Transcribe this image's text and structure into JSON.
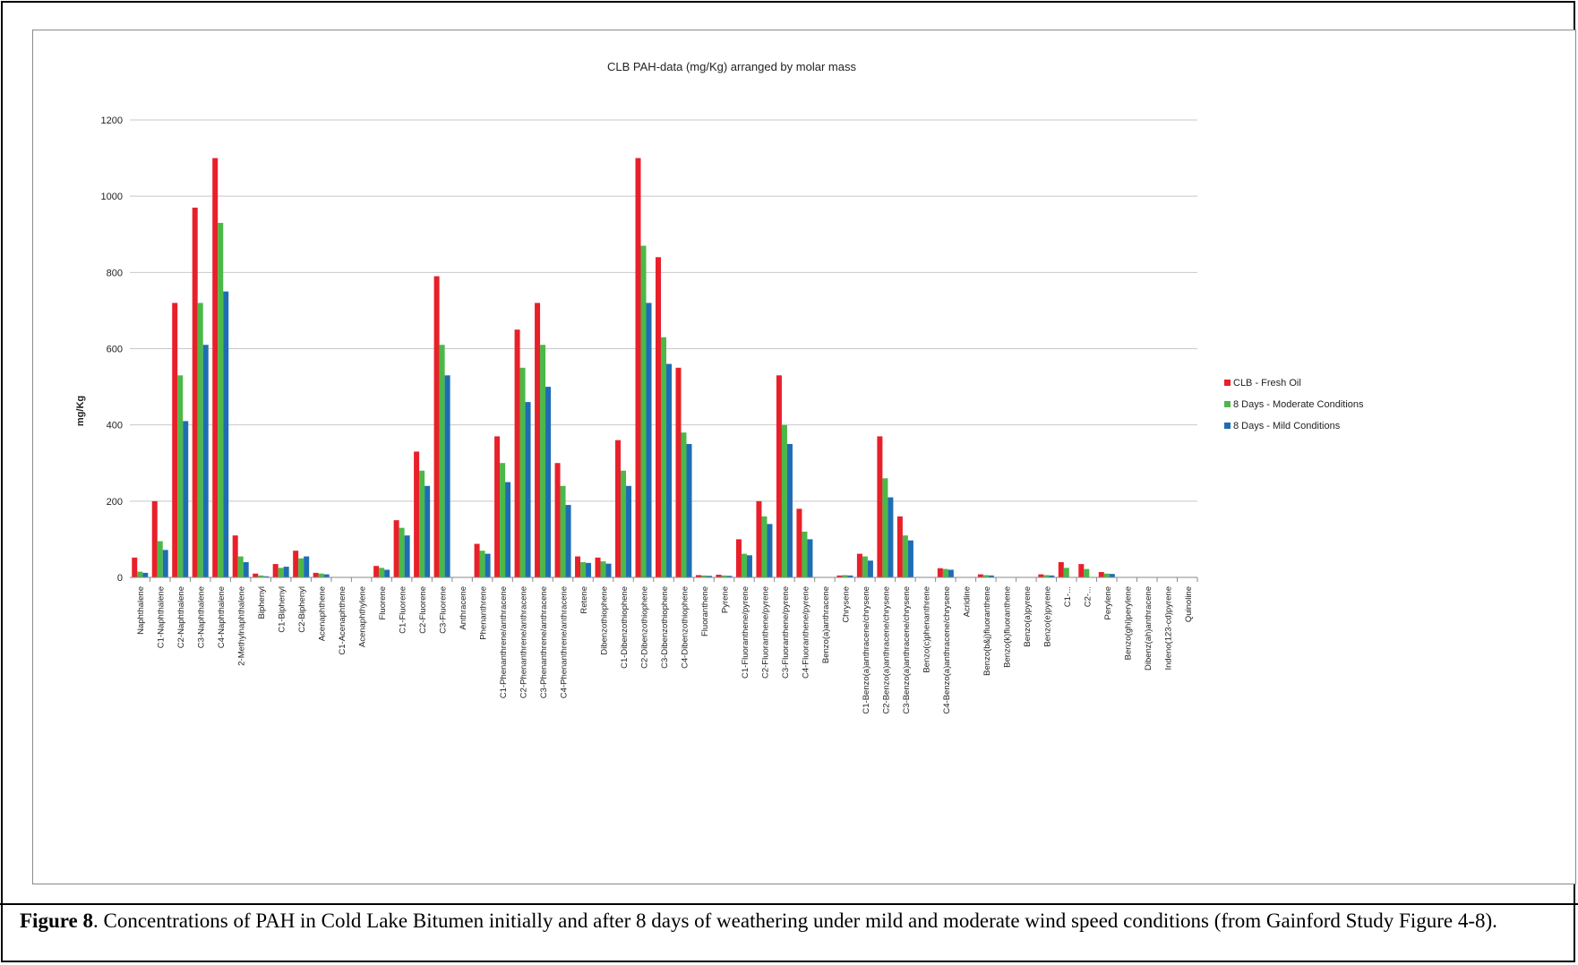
{
  "chart_data": {
    "type": "bar",
    "title": "CLB PAH-data (mg/Kg) arranged by molar mass",
    "xlabel": "",
    "ylabel": "mg/Kg",
    "ylim": [
      0,
      1200
    ],
    "yticks": [
      0,
      200,
      400,
      600,
      800,
      1000,
      1200
    ],
    "grid": true,
    "legend_position": "right",
    "categories": [
      "Naphthalene",
      "C1-Naphthalene",
      "C2-Naphthalene",
      "C3-Naphthalene",
      "C4-Naphthalene",
      "2-Methylnaphthalene",
      "Biphenyl",
      "C1-Biphenyl",
      "C2-Biphenyl",
      "Acenaphthene",
      "C1-Acenaphthene",
      "Acenaphthylene",
      "Fluorene",
      "C1-Fluorene",
      "C2-Fluorene",
      "C3-Fluorene",
      "Anthracene",
      "Phenanthrene",
      "C1-Phenanthrene/anthracene",
      "C2-Phenanthrene/anthracene",
      "C3-Phenanthrene/anthracene",
      "C4-Phenanthrene/anthracene",
      "Retene",
      "Dibenzothiophene",
      "C1-Dibenzothiophene",
      "C2-Dibenzothiophene",
      "C3-Dibenzothiophene",
      "C4-Dibenzothiophene",
      "Fluoranthene",
      "Pyrene",
      "C1-Fluoranthene/pyrene",
      "C2-Fluoranthene/pyrene",
      "C3-Fluoranthene/pyrene",
      "C4-Fluoranthene/pyrene",
      "Benzo(a)anthracene",
      "Chrysene",
      "C1-Benzo(a)anthracene/chrysene",
      "C2-Benzo(a)anthracene/chrysene",
      "C3-Benzo(a)anthracene/chrysene",
      "Benzo(c)phenanthrene",
      "C4-Benzo(a)anthracene/chrysene",
      "Acridine",
      "Benzo(b&j)fluoranthene",
      "Benzo(k)fluoranthene",
      "Benzo(a)pyrene",
      "Benzo(e)pyrene",
      "C1-...",
      "C2-...",
      "Perylene",
      "Benzo(ghi)perylene",
      "Dibenz(ah)anthracene",
      "Indeno(123-cd)pyrene",
      "Quinoline"
    ],
    "series": [
      {
        "name": "CLB - Fresh Oil",
        "color": "#e8202a",
        "values": [
          52,
          200,
          720,
          970,
          1100,
          110,
          10,
          35,
          70,
          12,
          0,
          0,
          30,
          150,
          330,
          790,
          0,
          88,
          370,
          650,
          720,
          300,
          55,
          52,
          360,
          1100,
          840,
          550,
          6,
          7,
          100,
          200,
          530,
          180,
          0,
          5,
          62,
          370,
          160,
          0,
          24,
          0,
          8,
          0,
          0,
          8,
          40,
          35,
          14,
          0,
          0,
          0,
          0
        ]
      },
      {
        "name": "8 Days - Moderate Conditions",
        "color": "#4cb848",
        "values": [
          15,
          95,
          530,
          720,
          930,
          55,
          5,
          25,
          50,
          10,
          0,
          0,
          25,
          130,
          280,
          610,
          0,
          70,
          300,
          550,
          610,
          240,
          40,
          42,
          280,
          870,
          630,
          380,
          5,
          5,
          62,
          160,
          400,
          120,
          0,
          6,
          55,
          260,
          110,
          0,
          22,
          0,
          6,
          0,
          0,
          6,
          25,
          22,
          10,
          0,
          0,
          0,
          0
        ]
      },
      {
        "name": "8 Days - Mild Conditions",
        "color": "#1e6db4",
        "values": [
          12,
          72,
          410,
          610,
          750,
          40,
          3,
          28,
          55,
          8,
          0,
          0,
          20,
          110,
          240,
          530,
          0,
          62,
          250,
          460,
          500,
          190,
          38,
          36,
          240,
          720,
          560,
          350,
          4,
          4,
          58,
          140,
          350,
          100,
          0,
          5,
          44,
          210,
          97,
          0,
          20,
          0,
          5,
          0,
          0,
          5,
          0,
          0,
          9,
          0,
          0,
          0,
          0
        ]
      }
    ]
  },
  "caption": {
    "label": "Figure 8",
    "text": ". Concentrations of PAH in Cold Lake Bitumen initially and after 8 days of weathering under mild and moderate wind speed conditions (from Gainford Study Figure 4-8)."
  }
}
